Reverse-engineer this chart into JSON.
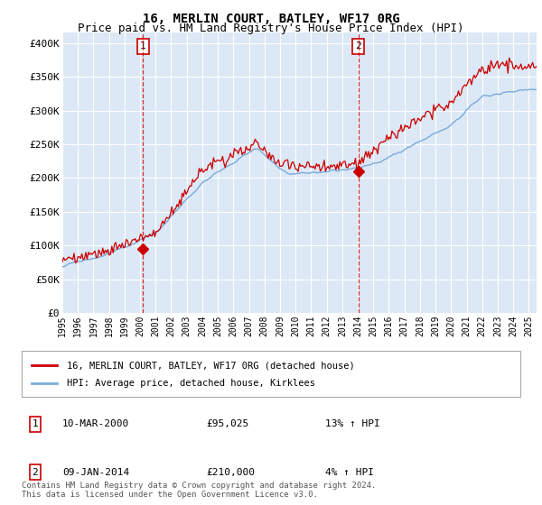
{
  "title": "16, MERLIN COURT, BATLEY, WF17 0RG",
  "subtitle": "Price paid vs. HM Land Registry's House Price Index (HPI)",
  "ylabel_ticks": [
    "£0",
    "£50K",
    "£100K",
    "£150K",
    "£200K",
    "£250K",
    "£300K",
    "£350K",
    "£400K"
  ],
  "ytick_values": [
    0,
    50000,
    100000,
    150000,
    200000,
    250000,
    300000,
    350000,
    400000
  ],
  "ylim": [
    0,
    415000
  ],
  "xlim_start": 1995.0,
  "xlim_end": 2025.5,
  "hpi_color": "#7aabdb",
  "price_color": "#cc0000",
  "annotation_color": "#cc0000",
  "background_color": "#dce8f5",
  "grid_color": "#ffffff",
  "legend_label_price": "16, MERLIN COURT, BATLEY, WF17 0RG (detached house)",
  "legend_label_hpi": "HPI: Average price, detached house, Kirklees",
  "marker1_date": 2000.19,
  "marker1_price": 95025,
  "marker1_label": "1",
  "marker1_text": "10-MAR-2000",
  "marker1_amount": "£95,025",
  "marker1_hpi": "13% ↑ HPI",
  "marker2_date": 2014.03,
  "marker2_price": 210000,
  "marker2_label": "2",
  "marker2_text": "09-JAN-2014",
  "marker2_amount": "£210,000",
  "marker2_hpi": "4% ↑ HPI",
  "footnote": "Contains HM Land Registry data © Crown copyright and database right 2024.\nThis data is licensed under the Open Government Licence v3.0.",
  "title_fontsize": 10,
  "subtitle_fontsize": 9
}
